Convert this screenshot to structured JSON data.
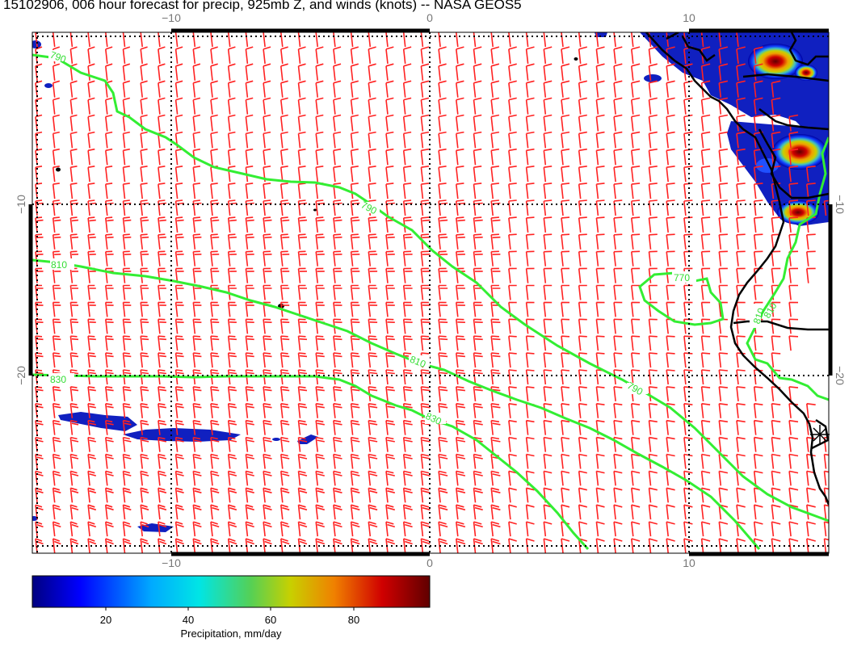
{
  "title": "15102906, 006 hour forecast for precip, 925mb Z, and winds (knots) -- NASA GEOS5",
  "map": {
    "x_ticks_top": [
      "−10",
      "0",
      "10"
    ],
    "x_ticks_bottom": [
      "−10",
      "0",
      "10"
    ],
    "y_ticks_left": [
      "−10",
      "−20"
    ],
    "y_ticks_right": [
      "−10",
      "−20"
    ],
    "contour_labels": [
      "790",
      "790",
      "810",
      "810",
      "810",
      "830",
      "830",
      "790",
      "770",
      "810"
    ],
    "colors": {
      "wind_barbs": "#ff2222",
      "height_contours": "#33ee33",
      "coastline": "#000000",
      "gridlines": "#000000"
    },
    "layers": [
      "precipitation",
      "925mb geopotential height",
      "wind barbs",
      "coastline"
    ]
  },
  "colorbar": {
    "ticks": [
      "20",
      "40",
      "60",
      "80"
    ],
    "label": "Precipitation, mm/day",
    "colors": [
      "#000080",
      "#0000ff",
      "#00aaff",
      "#00e5e5",
      "#55d055",
      "#c8d000",
      "#f08000",
      "#d00000",
      "#600000"
    ]
  }
}
